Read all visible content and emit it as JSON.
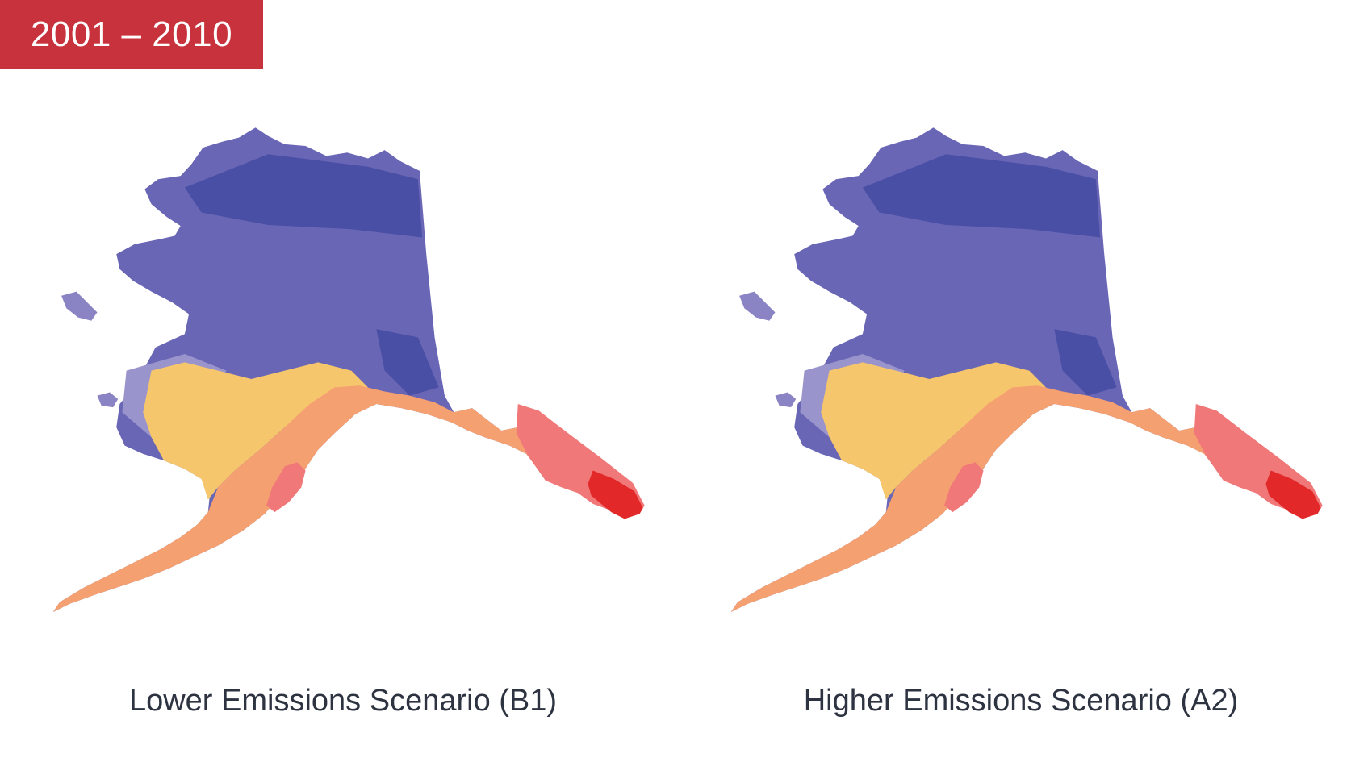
{
  "period": {
    "label": "2001 – 2010"
  },
  "colors": {
    "badge": "#c8323c",
    "deep_blue": "#4a4fa6",
    "mid_blue": "#6a66b6",
    "light_blue": "#9a94cc",
    "yellow": "#f6c66c",
    "orange": "#f4a070",
    "salmon": "#f07878",
    "red": "#e22828",
    "caption_text": "#2d3340"
  },
  "maps": [
    {
      "caption": "Lower Emissions Scenario (B1)",
      "warm_extent": 0.45
    },
    {
      "caption": "Higher Emissions Scenario (A2)",
      "warm_extent": 0.55
    }
  ]
}
